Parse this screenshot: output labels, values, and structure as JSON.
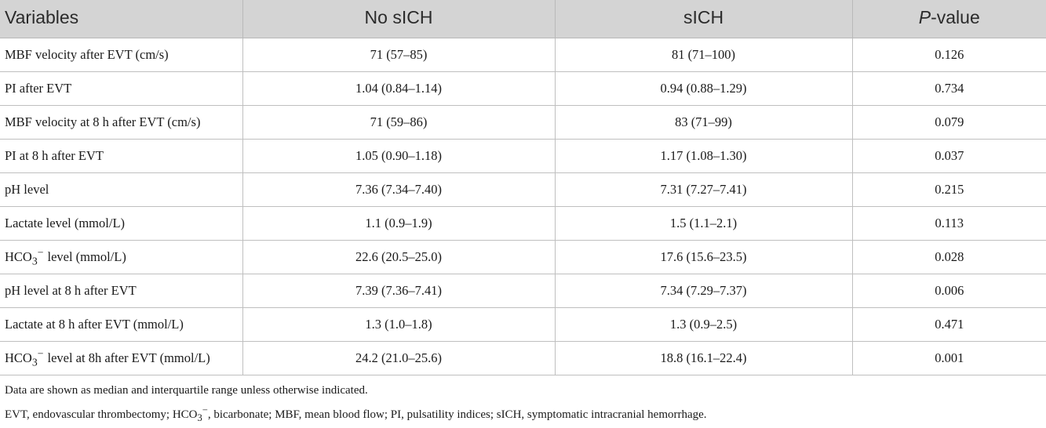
{
  "table": {
    "headers": [
      "Variables",
      "No sICH",
      "sICH",
      "-value"
    ],
    "header_p": "P",
    "rows": [
      {
        "variable": "MBF velocity after EVT (cm/s)",
        "no_sich": "71 (57–85)",
        "sich": "81 (71–100)",
        "p": "0.126"
      },
      {
        "variable": "PI after EVT",
        "no_sich": "1.04 (0.84–1.14)",
        "sich": "0.94 (0.88–1.29)",
        "p": "0.734"
      },
      {
        "variable": "MBF velocity at 8 h after EVT (cm/s)",
        "no_sich": "71 (59–86)",
        "sich": "83 (71–99)",
        "p": "0.079"
      },
      {
        "variable": "PI at 8 h after EVT",
        "no_sich": "1.05 (0.90–1.18)",
        "sich": "1.17 (1.08–1.30)",
        "p": "0.037"
      },
      {
        "variable": "pH level",
        "no_sich": "7.36 (7.34–7.40)",
        "sich": "7.31 (7.27–7.41)",
        "p": "0.215"
      },
      {
        "variable": "Lactate level (mmol/L)",
        "no_sich": "1.1 (0.9–1.9)",
        "sich": "1.5 (1.1–2.1)",
        "p": "0.113"
      },
      {
        "variable": "level (mmol/L)",
        "chem": true,
        "no_sich": "22.6 (20.5–25.0)",
        "sich": "17.6 (15.6–23.5)",
        "p": "0.028"
      },
      {
        "variable": "pH level at 8 h after EVT",
        "no_sich": "7.39 (7.36–7.41)",
        "sich": "7.34 (7.29–7.37)",
        "p": "0.006"
      },
      {
        "variable": "Lactate at 8 h after EVT (mmol/L)",
        "no_sich": "1.3 (1.0–1.8)",
        "sich": "1.3 (0.9–2.5)",
        "p": "0.471"
      },
      {
        "variable": "level at 8h after EVT (mmol/L)",
        "chem": true,
        "no_sich": "24.2 (21.0–25.6)",
        "sich": "18.8 (16.1–22.4)",
        "p": "0.001"
      }
    ]
  },
  "chem": {
    "base": "HCO",
    "sub": "3",
    "sup": "−"
  },
  "notes": {
    "line1": "Data are shown as median and interquartile range unless otherwise indicated.",
    "line2_prefix": "EVT, endovascular thrombectomy; ",
    "line2_suffix": ", bicarbonate; MBF, mean blood flow; PI, pulsatility indices; sICH, symptomatic intracranial hemorrhage."
  }
}
